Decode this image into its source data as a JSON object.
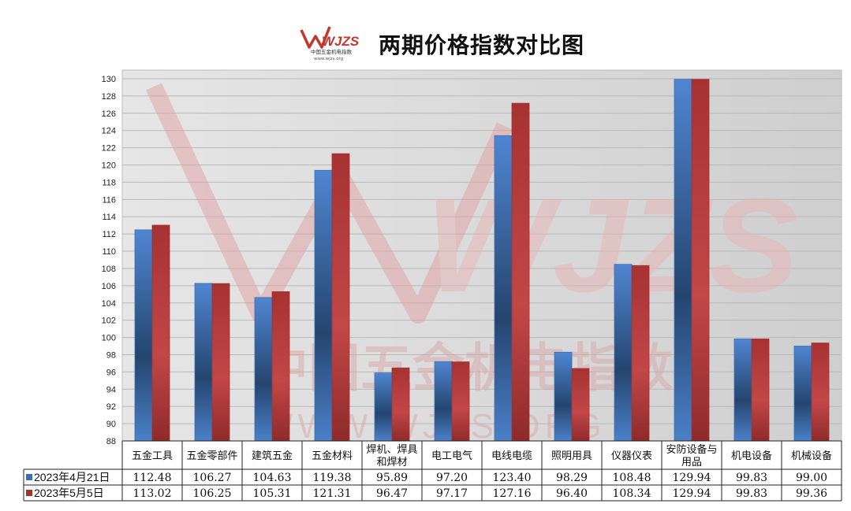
{
  "header": {
    "title": "两期价格指数对比图",
    "logo_text": "WJZS",
    "logo_subtext": "中国五金机电指数",
    "logo_url_text": "www.wjzs.org"
  },
  "watermark": {
    "brand": "WJZS",
    "name": "中国五金机电指数",
    "url": "WWW.WJZS.ORG"
  },
  "colors": {
    "series1": "#3a6fb8",
    "series2": "#a33333",
    "plot_bg": "#d9d9d9",
    "watermark": "#e8b4b4"
  },
  "chart_data": {
    "type": "bar",
    "title": "两期价格指数对比图",
    "categories": [
      "五金工具",
      "五金零部件",
      "建筑五金",
      "五金材料",
      "焊机、焊具和焊材",
      "电工电气",
      "电线电缆",
      "照明用具",
      "仪器仪表",
      "安防设备与用品",
      "机电设备",
      "机械设备"
    ],
    "category_lines": [
      [
        "五金工具"
      ],
      [
        "五金零部件"
      ],
      [
        "建筑五金"
      ],
      [
        "五金材料"
      ],
      [
        "焊机、焊具",
        "和焊材"
      ],
      [
        "电工电气"
      ],
      [
        "电线电缆"
      ],
      [
        "照明用具"
      ],
      [
        "仪器仪表"
      ],
      [
        "安防设备与",
        "用品"
      ],
      [
        "机电设备"
      ],
      [
        "机械设备"
      ]
    ],
    "series": [
      {
        "name": "2023年4月21日",
        "values": [
          112.48,
          106.27,
          104.63,
          119.38,
          95.89,
          97.2,
          123.4,
          98.29,
          108.48,
          129.94,
          99.83,
          99.0
        ]
      },
      {
        "name": "2023年5月5日",
        "values": [
          113.02,
          106.25,
          105.31,
          121.31,
          96.47,
          97.17,
          127.16,
          96.4,
          108.34,
          129.94,
          99.83,
          99.36
        ]
      }
    ],
    "series_labels": [
      [
        "112.48",
        "106.27",
        "104.63",
        "119.38",
        "95.89",
        "97.20",
        "123.40",
        "98.29",
        "108.48",
        "129.94",
        "99.83",
        "99.00"
      ],
      [
        "113.02",
        "106.25",
        "105.31",
        "121.31",
        "96.47",
        "97.17",
        "127.16",
        "96.40",
        "108.34",
        "129.94",
        "99.83",
        "99.36"
      ]
    ],
    "ylim": [
      88,
      130
    ],
    "yticks": [
      "88",
      "90",
      "92",
      "94",
      "96",
      "98",
      "100",
      "102",
      "104",
      "106",
      "108",
      "110",
      "112",
      "114",
      "116",
      "118",
      "120",
      "122",
      "124",
      "126",
      "128",
      "130"
    ],
    "grid": true,
    "legend": "data-table-left"
  }
}
